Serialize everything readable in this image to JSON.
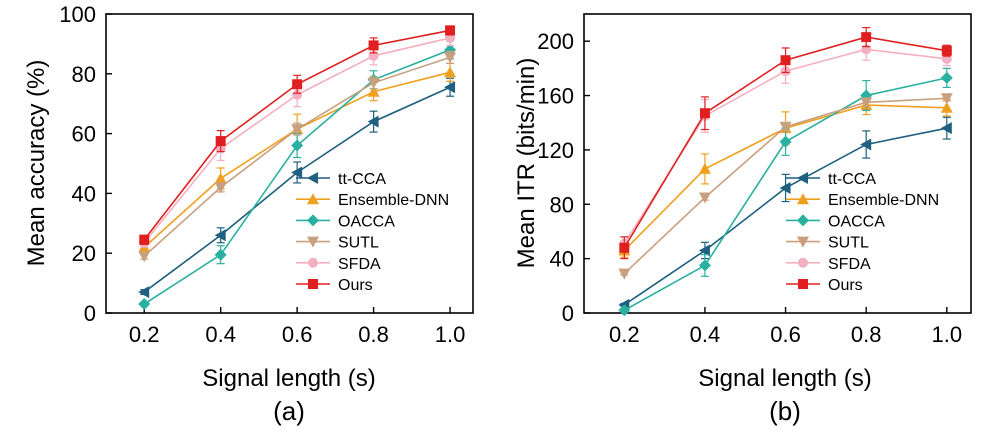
{
  "chart_data": [
    {
      "type": "line",
      "panel_label": "(a)",
      "xlabel": "Signal length (s)",
      "ylabel": "Mean accuracy (%)",
      "x": [
        0.2,
        0.4,
        0.6,
        0.8,
        1.0
      ],
      "x_ticks": [
        "0.2",
        "0.4",
        "0.6",
        "0.8",
        "1.0"
      ],
      "ylim": [
        0,
        100
      ],
      "y_ticks": [
        "0",
        "20",
        "40",
        "60",
        "80",
        "100"
      ],
      "legend_position": "bottom-right",
      "series": [
        {
          "name": "tt-CCA",
          "color": "#1f5f80",
          "marker": "left-triangle",
          "values": [
            7,
            26,
            47,
            64,
            75.5
          ],
          "err": [
            0.8,
            2.5,
            3.5,
            3.5,
            3.0
          ]
        },
        {
          "name": "Ensemble-DNN",
          "color": "#f0a020",
          "marker": "up-triangle",
          "values": [
            22,
            45,
            61.5,
            74,
            80.5
          ],
          "err": [
            2,
            3.5,
            5,
            3,
            3
          ]
        },
        {
          "name": "OACCA",
          "color": "#2ab0a0",
          "marker": "diamond",
          "values": [
            3,
            19.5,
            56,
            78,
            88
          ],
          "err": [
            0.5,
            3,
            4,
            3,
            3
          ]
        },
        {
          "name": "SUTL",
          "color": "#c8a080",
          "marker": "down-triangle",
          "values": [
            19,
            42,
            61.5,
            77,
            85.5
          ],
          "err": [
            1,
            1.5,
            2,
            2,
            2
          ]
        },
        {
          "name": "SFDA",
          "color": "#f4b0c0",
          "marker": "circle",
          "values": [
            23.5,
            55,
            73,
            86,
            92
          ],
          "err": [
            1.5,
            4,
            4,
            3,
            2.5
          ]
        },
        {
          "name": "Ours",
          "color": "#e02020",
          "marker": "square",
          "values": [
            24.5,
            57.5,
            76.5,
            89.5,
            94.5
          ],
          "err": [
            1.5,
            3.5,
            3,
            2.5,
            1.5
          ]
        }
      ]
    },
    {
      "type": "line",
      "panel_label": "(b)",
      "xlabel": "Signal length (s)",
      "ylabel": "Mean ITR (bits/min)",
      "x": [
        0.2,
        0.4,
        0.6,
        0.8,
        1.0
      ],
      "x_ticks": [
        "0.2",
        "0.4",
        "0.6",
        "0.8",
        "1.0"
      ],
      "ylim": [
        0,
        220
      ],
      "y_ticks": [
        "0",
        "40",
        "80",
        "120",
        "160",
        "200"
      ],
      "legend_position": "bottom-right",
      "series": [
        {
          "name": "tt-CCA",
          "color": "#1f5f80",
          "marker": "left-triangle",
          "values": [
            6,
            46,
            92,
            124,
            136
          ],
          "err": [
            1,
            6,
            10,
            10,
            8
          ]
        },
        {
          "name": "Ensemble-DNN",
          "color": "#f0a020",
          "marker": "up-triangle",
          "values": [
            46,
            106,
            136,
            153,
            151
          ],
          "err": [
            5,
            11,
            12,
            7,
            6
          ]
        },
        {
          "name": "OACCA",
          "color": "#2ab0a0",
          "marker": "diamond",
          "values": [
            2,
            35,
            126,
            160,
            173
          ],
          "err": [
            0.5,
            8,
            10,
            11,
            7
          ]
        },
        {
          "name": "SUTL",
          "color": "#c8a080",
          "marker": "down-triangle",
          "values": [
            29,
            85,
            137,
            155,
            158
          ],
          "err": [
            1,
            2,
            3,
            3,
            2
          ]
        },
        {
          "name": "SFDA",
          "color": "#f4b0c0",
          "marker": "circle",
          "values": [
            51,
            145,
            178,
            194,
            187
          ],
          "err": [
            5,
            12,
            9,
            8,
            5
          ]
        },
        {
          "name": "Ours",
          "color": "#e02020",
          "marker": "square",
          "values": [
            48,
            147,
            186,
            203,
            193
          ],
          "err": [
            8,
            12,
            9,
            7,
            4
          ]
        }
      ]
    }
  ]
}
